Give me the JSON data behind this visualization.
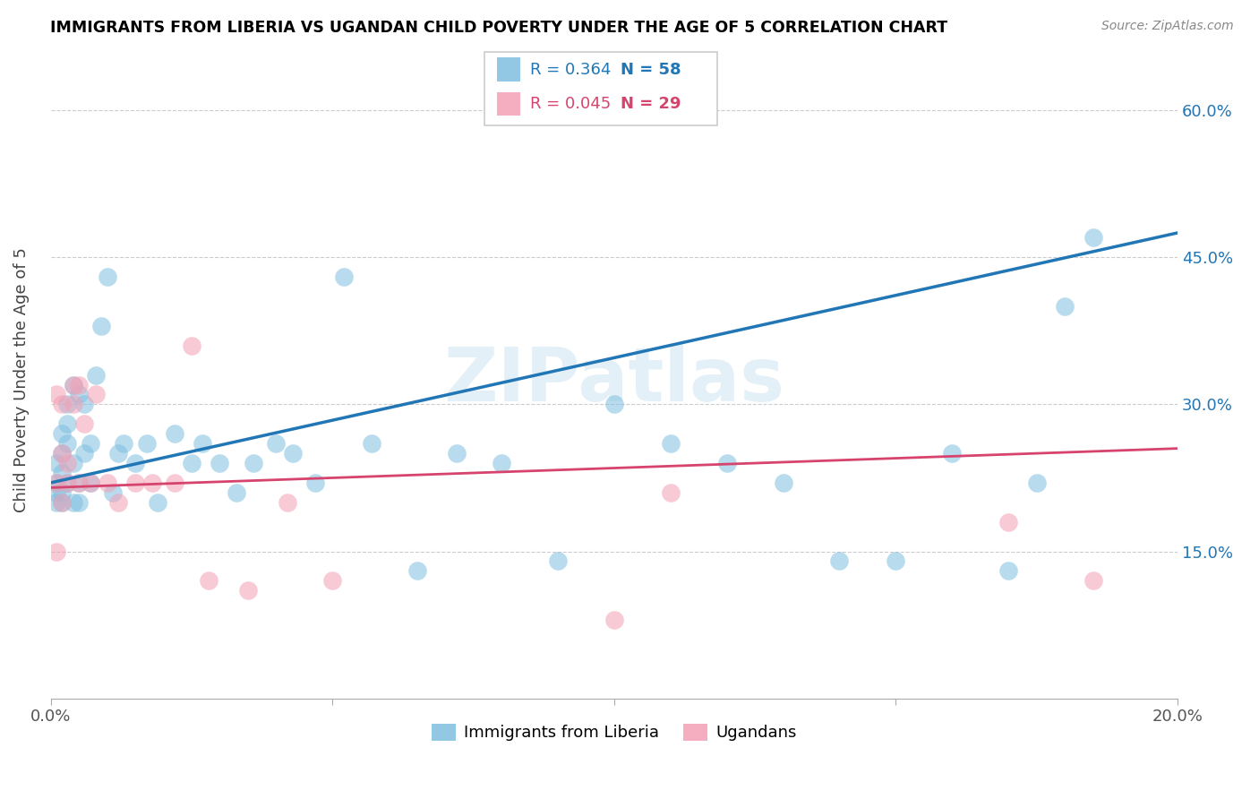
{
  "title": "IMMIGRANTS FROM LIBERIA VS UGANDAN CHILD POVERTY UNDER THE AGE OF 5 CORRELATION CHART",
  "source": "Source: ZipAtlas.com",
  "ylabel": "Child Poverty Under the Age of 5",
  "ytick_labels": [
    "60.0%",
    "45.0%",
    "30.0%",
    "15.0%"
  ],
  "ytick_values": [
    0.6,
    0.45,
    0.3,
    0.15
  ],
  "xlim": [
    0.0,
    0.2
  ],
  "ylim": [
    0.0,
    0.65
  ],
  "legend_blue_R": "0.364",
  "legend_blue_N": "58",
  "legend_pink_R": "0.045",
  "legend_pink_N": "29",
  "legend_label_blue": "Immigrants from Liberia",
  "legend_label_pink": "Ugandans",
  "blue_color": "#7fbfdf",
  "pink_color": "#f4a0b5",
  "blue_line_color": "#2176b5",
  "pink_line_color": "#d6446e",
  "watermark": "ZIPatlas",
  "blue_line_x0": 0.0,
  "blue_line_y0": 0.22,
  "blue_line_x1": 0.2,
  "blue_line_y1": 0.475,
  "pink_line_x0": 0.0,
  "pink_line_y0": 0.215,
  "pink_line_x1": 0.2,
  "pink_line_y1": 0.255,
  "blue_scatter_x": [
    0.001,
    0.001,
    0.001,
    0.001,
    0.002,
    0.002,
    0.002,
    0.002,
    0.002,
    0.003,
    0.003,
    0.003,
    0.003,
    0.004,
    0.004,
    0.004,
    0.005,
    0.005,
    0.005,
    0.006,
    0.006,
    0.007,
    0.007,
    0.008,
    0.009,
    0.01,
    0.011,
    0.012,
    0.013,
    0.015,
    0.017,
    0.019,
    0.022,
    0.025,
    0.027,
    0.03,
    0.033,
    0.036,
    0.04,
    0.043,
    0.047,
    0.052,
    0.057,
    0.065,
    0.072,
    0.08,
    0.09,
    0.1,
    0.11,
    0.12,
    0.13,
    0.14,
    0.15,
    0.16,
    0.17,
    0.175,
    0.18,
    0.185
  ],
  "blue_scatter_y": [
    0.21,
    0.22,
    0.24,
    0.2,
    0.23,
    0.25,
    0.2,
    0.21,
    0.27,
    0.22,
    0.26,
    0.28,
    0.3,
    0.24,
    0.32,
    0.2,
    0.22,
    0.31,
    0.2,
    0.25,
    0.3,
    0.22,
    0.26,
    0.33,
    0.38,
    0.43,
    0.21,
    0.25,
    0.26,
    0.24,
    0.26,
    0.2,
    0.27,
    0.24,
    0.26,
    0.24,
    0.21,
    0.24,
    0.26,
    0.25,
    0.22,
    0.43,
    0.26,
    0.13,
    0.25,
    0.24,
    0.14,
    0.3,
    0.26,
    0.24,
    0.22,
    0.14,
    0.14,
    0.25,
    0.13,
    0.22,
    0.4,
    0.47
  ],
  "pink_scatter_x": [
    0.001,
    0.001,
    0.001,
    0.002,
    0.002,
    0.002,
    0.003,
    0.003,
    0.004,
    0.004,
    0.005,
    0.005,
    0.006,
    0.007,
    0.008,
    0.01,
    0.012,
    0.015,
    0.018,
    0.022,
    0.025,
    0.028,
    0.035,
    0.042,
    0.05,
    0.1,
    0.11,
    0.17,
    0.185
  ],
  "pink_scatter_y": [
    0.22,
    0.31,
    0.15,
    0.25,
    0.3,
    0.2,
    0.24,
    0.22,
    0.3,
    0.32,
    0.32,
    0.22,
    0.28,
    0.22,
    0.31,
    0.22,
    0.2,
    0.22,
    0.22,
    0.22,
    0.36,
    0.12,
    0.11,
    0.2,
    0.12,
    0.08,
    0.21,
    0.18,
    0.12
  ]
}
